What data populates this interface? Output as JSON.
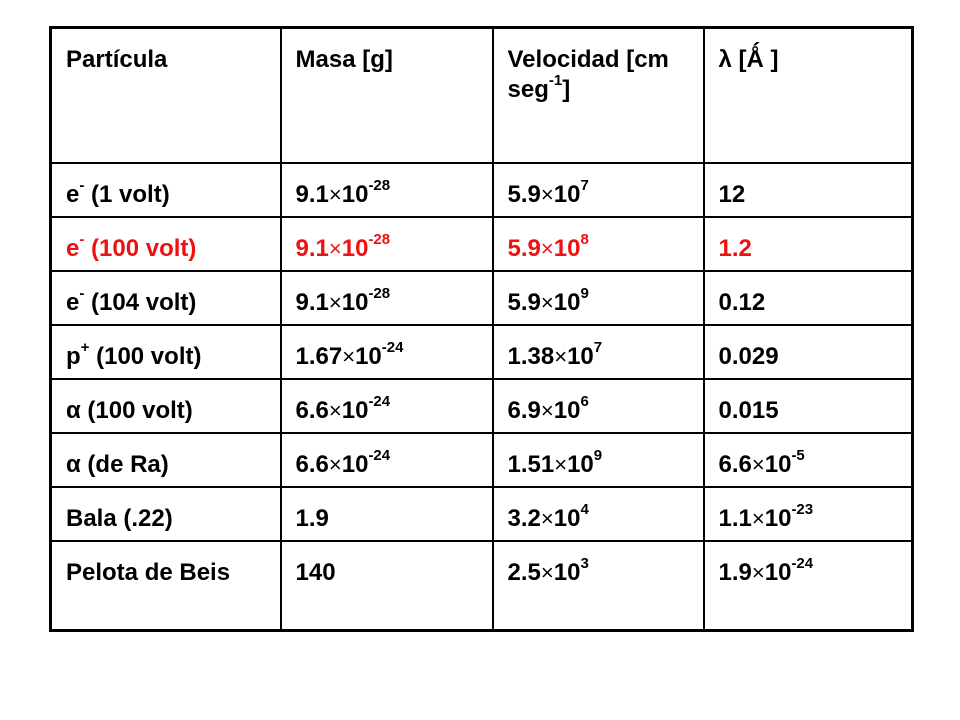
{
  "table": {
    "headers": {
      "c1": "Partícula",
      "c2": "Masa [g]",
      "c3_main": "Velocidad [cm seg",
      "c3_sup": "-1",
      "c3_tail": "]",
      "c4": "λ [Ǻ ]"
    },
    "times_symbol": "×",
    "rows": [
      {
        "particle_base": "e",
        "particle_sup": "-",
        "particle_rest": " (1 volt)",
        "mass_coef": "9.1",
        "mass_exp": "-28",
        "vel_coef": "5.9",
        "vel_exp": "7",
        "lambda_text": "12"
      },
      {
        "particle_base": "e",
        "particle_sup": "-",
        "particle_rest": " (100 volt)",
        "mass_coef": "9.1",
        "mass_exp": "-28",
        "vel_coef": "5.9",
        "vel_exp": "8",
        "lambda_text": "1.2",
        "highlight_color": "#ee1111"
      },
      {
        "particle_base": "e",
        "particle_sup": "-",
        "particle_rest": " (104 volt)",
        "mass_coef": "9.1",
        "mass_exp": "-28",
        "vel_coef": "5.9",
        "vel_exp": "9",
        "lambda_text": "0.12"
      },
      {
        "particle_base": "p",
        "particle_sup": "+",
        "particle_rest": " (100 volt)",
        "mass_coef": "1.67",
        "mass_exp": "-24",
        "vel_coef": "1.38",
        "vel_exp": "7",
        "lambda_text": "0.029"
      },
      {
        "particle_text": "α (100 volt)",
        "mass_coef": "6.6",
        "mass_exp": "-24",
        "vel_coef": "6.9",
        "vel_exp": "6",
        "lambda_text": "0.015"
      },
      {
        "particle_text": "α (de Ra)",
        "mass_coef": "6.6",
        "mass_exp": "-24",
        "vel_coef": "1.51",
        "vel_exp": "9",
        "lambda_coef": "6.6",
        "lambda_exp": "-5"
      },
      {
        "particle_text": "Bala (.22)",
        "mass_text": "1.9",
        "vel_coef": "3.2",
        "vel_exp": "4",
        "lambda_coef": "1.1",
        "lambda_exp": "-23"
      },
      {
        "particle_text": "Pelota de Beis",
        "mass_text": "140",
        "vel_coef": "2.5",
        "vel_exp": "3",
        "lambda_coef": "1.9",
        "lambda_exp": "-24"
      }
    ]
  }
}
